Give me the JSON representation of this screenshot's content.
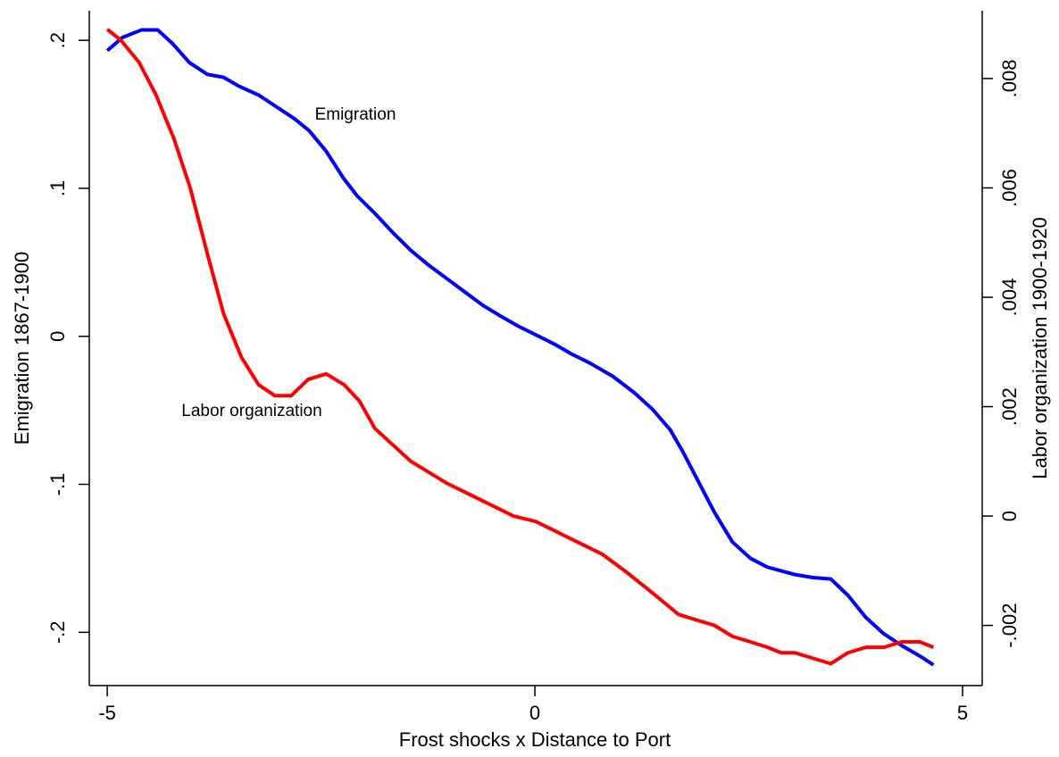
{
  "chart_data": {
    "type": "line",
    "x_label": "Frost shocks x Distance to Port",
    "y_label": "Emigration 1867-1900",
    "y2_label": "Labor organization 1900-1920",
    "annotations": [
      "Emigration",
      "Labor organization"
    ],
    "xlim": [
      -5.21,
      5.23
    ],
    "xticks": [
      -5,
      0,
      5
    ],
    "ylim": [
      -0.236,
      0.22
    ],
    "yticks": [
      {
        "value": -0.2,
        "label": "-.2"
      },
      {
        "value": -0.1,
        "label": "-.1"
      },
      0,
      {
        "value": 0.1,
        "label": ".1"
      },
      {
        "value": 0.2,
        "label": ".2"
      }
    ],
    "y2lim": [
      -0.0031,
      0.00924
    ],
    "y2ticks": [
      {
        "value": -0.002,
        "label": "-.002"
      },
      0,
      {
        "value": 0.002,
        "label": ".002"
      },
      {
        "value": 0.004,
        "label": ".004"
      },
      {
        "value": 0.006,
        "label": ".006"
      },
      {
        "value": 0.008,
        "label": ".008"
      }
    ],
    "series": [
      {
        "name": "Emigration",
        "color": "#0000ff",
        "x": [
          -5.0,
          -4.82,
          -4.6,
          -4.41,
          -4.24,
          -4.04,
          -3.83,
          -3.64,
          -3.46,
          -3.23,
          -3.02,
          -2.81,
          -2.64,
          -2.44,
          -2.24,
          -2.08,
          -1.87,
          -1.66,
          -1.45,
          -1.24,
          -1.03,
          -0.82,
          -0.61,
          -0.41,
          -0.2,
          0.01,
          0.22,
          0.43,
          0.64,
          0.91,
          1.16,
          1.37,
          1.58,
          1.73,
          1.91,
          2.1,
          2.31,
          2.52,
          2.72,
          3.04,
          3.25,
          3.46,
          3.66,
          3.87,
          4.08,
          4.29,
          4.5,
          4.66
        ],
        "values": [
          0.193,
          0.202,
          0.207,
          0.207,
          0.198,
          0.185,
          0.177,
          0.175,
          0.169,
          0.163,
          0.155,
          0.147,
          0.139,
          0.125,
          0.107,
          0.095,
          0.083,
          0.07,
          0.058,
          0.048,
          0.039,
          0.03,
          0.021,
          0.014,
          0.007,
          0.001,
          -0.005,
          -0.012,
          -0.018,
          -0.027,
          -0.038,
          -0.049,
          -0.063,
          -0.078,
          -0.098,
          -0.119,
          -0.139,
          -0.15,
          -0.156,
          -0.161,
          -0.163,
          -0.164,
          -0.175,
          -0.19,
          -0.201,
          -0.209,
          -0.216,
          -0.222
        ]
      },
      {
        "name": "Labor organization",
        "color": "#ff0000",
        "axis": "y2",
        "x": [
          -5.0,
          -4.84,
          -4.63,
          -4.43,
          -4.22,
          -4.03,
          -3.83,
          -3.64,
          -3.43,
          -3.23,
          -3.04,
          -2.85,
          -2.65,
          -2.44,
          -2.23,
          -2.05,
          -1.87,
          -1.66,
          -1.45,
          -1.24,
          -1.03,
          -0.77,
          -0.51,
          -0.25,
          0.01,
          0.27,
          0.53,
          0.79,
          1.05,
          1.37,
          1.68,
          1.89,
          2.1,
          2.31,
          2.52,
          2.72,
          2.88,
          3.04,
          3.25,
          3.46,
          3.66,
          3.87,
          4.08,
          4.29,
          4.5,
          4.66
        ],
        "values": [
          0.0089,
          0.0087,
          0.0083,
          0.0077,
          0.0069,
          0.006,
          0.0048,
          0.0037,
          0.0029,
          0.0024,
          0.0022,
          0.0022,
          0.0025,
          0.0026,
          0.0024,
          0.0021,
          0.0016,
          0.0013,
          0.001,
          0.0008,
          0.0006,
          0.0004,
          0.0002,
          0.0,
          -0.0001,
          -0.0003,
          -0.0005,
          -0.0007,
          -0.001,
          -0.0014,
          -0.0018,
          -0.0019,
          -0.002,
          -0.0022,
          -0.0023,
          -0.0024,
          -0.0025,
          -0.0025,
          -0.0026,
          -0.0027,
          -0.0025,
          -0.0024,
          -0.0024,
          -0.0023,
          -0.0023,
          -0.0024
        ]
      }
    ]
  }
}
